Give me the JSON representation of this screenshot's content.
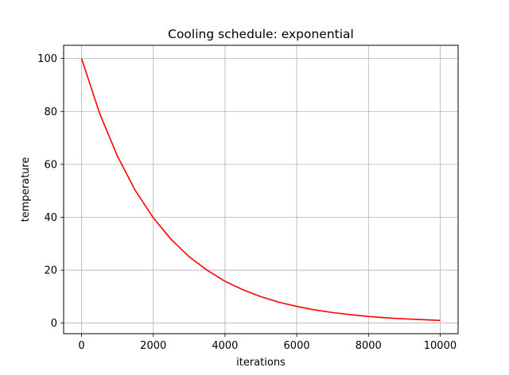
{
  "chart_data": {
    "type": "line",
    "title": "Cooling schedule: exponential",
    "xlabel": "iterations",
    "ylabel": "temperature",
    "xlim": [
      -500,
      10500
    ],
    "ylim": [
      -4,
      105
    ],
    "xticks": [
      0,
      2000,
      4000,
      6000,
      8000,
      10000
    ],
    "yticks": [
      0,
      20,
      40,
      60,
      80,
      100
    ],
    "grid": true,
    "series": [
      {
        "color": "#ff0000",
        "x": [
          0,
          500,
          1000,
          1500,
          2000,
          2500,
          3000,
          3500,
          4000,
          4500,
          5000,
          5500,
          6000,
          6500,
          7000,
          7500,
          8000,
          8500,
          9000,
          9500,
          10000
        ],
        "values": [
          100,
          79.4,
          63.1,
          50.1,
          39.8,
          31.6,
          25.1,
          20.0,
          15.8,
          12.6,
          10.0,
          7.9,
          6.3,
          5.0,
          4.0,
          3.2,
          2.5,
          2.0,
          1.6,
          1.3,
          1.0
        ]
      }
    ]
  }
}
